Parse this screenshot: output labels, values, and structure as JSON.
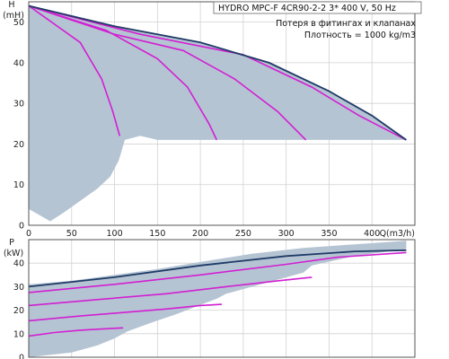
{
  "info": {
    "title": "HYDRO MPC-F 4CR90-2-2   3* 400 V, 50 Hz",
    "line1": "Потеря в фитингах и клапанах",
    "line2": "Плотность = 1000 kg/m3"
  },
  "colors": {
    "envelope": "#b5c4d3",
    "max_curve": "#1f3b66",
    "speed_curves": "#d21fd2",
    "grid": "#d2d2d2"
  },
  "chart_data": [
    {
      "type": "area",
      "ylabel_symbol": "H",
      "ylabel_unit": "(mH)",
      "xlabel": "Q(m3/h)",
      "xlim": [
        0,
        450
      ],
      "ylim": [
        0,
        55
      ],
      "xticks": [
        0,
        50,
        100,
        150,
        200,
        250,
        300,
        350,
        400
      ],
      "yticks": [
        0,
        10,
        20,
        30,
        40,
        50
      ],
      "grid": true,
      "envelope": {
        "top": [
          [
            0,
            54
          ],
          [
            100,
            49
          ],
          [
            200,
            45
          ],
          [
            280,
            40
          ],
          [
            350,
            33
          ],
          [
            400,
            27
          ],
          [
            440,
            21
          ]
        ],
        "bottom": [
          [
            440,
            21
          ],
          [
            385,
            21
          ],
          [
            350,
            21
          ],
          [
            300,
            21
          ],
          [
            200,
            21
          ],
          [
            150,
            21
          ],
          [
            130,
            22
          ],
          [
            112,
            21
          ],
          [
            105,
            16
          ],
          [
            95,
            12
          ],
          [
            80,
            9
          ],
          [
            40,
            3
          ],
          [
            25,
            1
          ],
          [
            0,
            4
          ]
        ]
      },
      "max_curve": [
        [
          0,
          54
        ],
        [
          100,
          49
        ],
        [
          200,
          45
        ],
        [
          280,
          40
        ],
        [
          350,
          33
        ],
        [
          400,
          27
        ],
        [
          440,
          21
        ]
      ],
      "speed_curves": [
        [
          [
            0,
            54
          ],
          [
            60,
            45
          ],
          [
            85,
            36
          ],
          [
            98,
            28
          ],
          [
            106,
            22
          ]
        ],
        [
          [
            0,
            54
          ],
          [
            90,
            48
          ],
          [
            150,
            41
          ],
          [
            185,
            34
          ],
          [
            210,
            25
          ],
          [
            219,
            21
          ]
        ],
        [
          [
            0,
            54
          ],
          [
            100,
            47
          ],
          [
            180,
            43
          ],
          [
            240,
            36
          ],
          [
            290,
            28
          ],
          [
            323,
            21
          ]
        ],
        [
          [
            0,
            54
          ],
          [
            130,
            47
          ],
          [
            250,
            42
          ],
          [
            330,
            34
          ],
          [
            385,
            27
          ],
          [
            440,
            21
          ]
        ]
      ]
    },
    {
      "type": "area",
      "ylabel_symbol": "P",
      "ylabel_unit": "(kW)",
      "xlim": [
        0,
        450
      ],
      "ylim": [
        0,
        50
      ],
      "yticks": [
        0,
        10,
        20,
        30,
        40
      ],
      "grid": true,
      "envelope": {
        "top": [
          [
            0,
            31
          ],
          [
            50,
            32.5
          ],
          [
            100,
            35
          ],
          [
            150,
            37.5
          ],
          [
            200,
            40.5
          ],
          [
            260,
            44
          ],
          [
            320,
            46.5
          ],
          [
            380,
            48
          ],
          [
            440,
            49.5
          ]
        ],
        "bottom": [
          [
            440,
            46
          ],
          [
            380,
            43
          ],
          [
            330,
            39
          ],
          [
            320,
            36
          ],
          [
            280,
            32
          ],
          [
            230,
            27
          ],
          [
            220,
            25
          ],
          [
            170,
            18
          ],
          [
            145,
            15
          ],
          [
            115,
            11
          ],
          [
            100,
            8
          ],
          [
            80,
            5
          ],
          [
            50,
            2
          ],
          [
            0,
            0
          ]
        ]
      },
      "max_curve": [
        [
          0,
          30
        ],
        [
          100,
          34
        ],
        [
          200,
          39
        ],
        [
          300,
          43
        ],
        [
          380,
          45
        ],
        [
          440,
          45.5
        ]
      ],
      "speed_curves": [
        [
          [
            0,
            9
          ],
          [
            30,
            10.5
          ],
          [
            60,
            11.5
          ],
          [
            85,
            12
          ],
          [
            110,
            12.5
          ]
        ],
        [
          [
            0,
            15.5
          ],
          [
            60,
            17.5
          ],
          [
            110,
            19
          ],
          [
            160,
            20.5
          ],
          [
            200,
            22
          ],
          [
            225,
            22.5
          ]
        ],
        [
          [
            0,
            22
          ],
          [
            80,
            24.5
          ],
          [
            160,
            27
          ],
          [
            230,
            30
          ],
          [
            290,
            32.5
          ],
          [
            330,
            34
          ]
        ],
        [
          [
            0,
            27.5
          ],
          [
            100,
            31
          ],
          [
            200,
            35
          ],
          [
            300,
            39.5
          ],
          [
            360,
            42.5
          ],
          [
            420,
            44
          ],
          [
            440,
            44.5
          ]
        ]
      ]
    }
  ]
}
